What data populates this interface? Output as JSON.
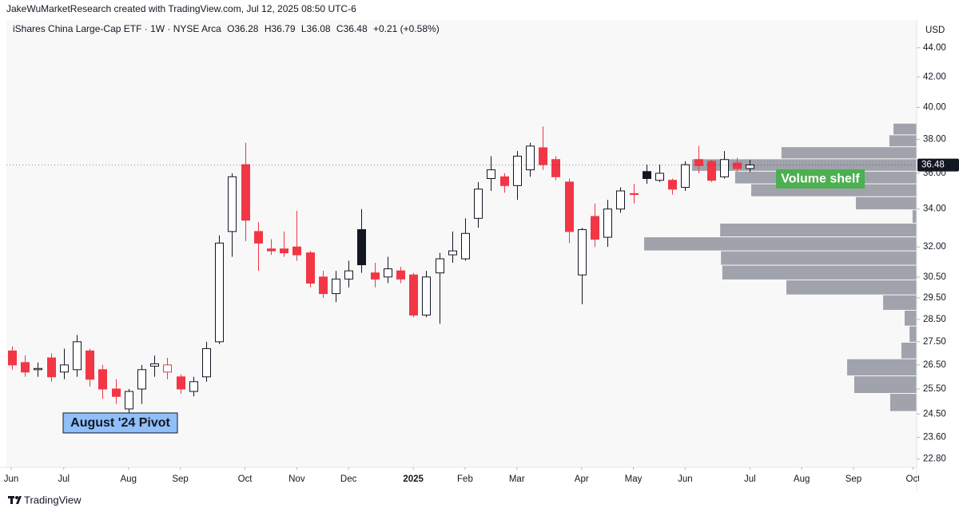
{
  "attribution": "JakeWuMarketResearch created with TradingView.com, Jul 12, 2025 08:50 UTC-6",
  "footer": "TradingView",
  "chart_data": {
    "type": "candlestick",
    "title": "iShares China Large-Cap ETF · 1W · NYSE Arca",
    "legend_values": [
      "O36.28",
      "H36.79",
      "L36.08",
      "C36.48",
      "+0.21 (+0.58%)"
    ],
    "currency": "USD",
    "log_scale": true,
    "up_color": "#131722",
    "down_color": "#f23645",
    "profile_color": "#a0a3ab",
    "candles": [
      [
        27.1,
        27.3,
        26.3,
        26.5
      ],
      [
        26.6,
        26.9,
        26.0,
        26.2
      ],
      [
        26.3,
        26.6,
        26.0,
        26.35
      ],
      [
        26.8,
        27.0,
        25.8,
        26.0
      ],
      [
        26.2,
        27.2,
        25.9,
        26.5
      ],
      [
        26.3,
        27.8,
        26.0,
        27.5
      ],
      [
        27.1,
        27.2,
        25.6,
        25.9
      ],
      [
        26.3,
        26.5,
        25.1,
        25.5
      ],
      [
        25.5,
        25.9,
        24.9,
        25.2
      ],
      [
        24.7,
        25.5,
        24.5,
        25.4
      ],
      [
        25.5,
        26.5,
        24.9,
        26.3
      ],
      [
        26.45,
        26.9,
        26.0,
        26.55
      ],
      [
        26.2,
        26.8,
        25.9,
        26.5
      ],
      [
        26.0,
        26.1,
        25.3,
        25.5
      ],
      [
        25.4,
        26.0,
        25.2,
        25.8
      ],
      [
        26.0,
        27.5,
        25.8,
        27.2
      ],
      [
        27.5,
        32.6,
        27.4,
        32.2
      ],
      [
        32.8,
        36.0,
        31.5,
        35.8
      ],
      [
        36.5,
        37.8,
        32.3,
        33.4
      ],
      [
        32.8,
        33.3,
        30.8,
        32.2
      ],
      [
        31.9,
        32.4,
        31.6,
        31.8
      ],
      [
        31.9,
        32.8,
        31.5,
        31.7
      ],
      [
        32.0,
        33.9,
        31.3,
        31.6
      ],
      [
        31.7,
        31.8,
        30.0,
        30.2
      ],
      [
        30.5,
        30.8,
        29.5,
        29.7
      ],
      [
        29.7,
        30.8,
        29.3,
        30.4
      ],
      [
        30.4,
        31.3,
        30.0,
        30.8
      ],
      [
        32.9,
        34.0,
        30.7,
        31.1
      ],
      [
        30.7,
        31.2,
        30.0,
        30.4
      ],
      [
        30.5,
        31.5,
        30.2,
        30.9
      ],
      [
        30.8,
        31.0,
        30.2,
        30.4
      ],
      [
        30.6,
        30.7,
        28.6,
        28.7
      ],
      [
        28.7,
        30.8,
        28.6,
        30.5
      ],
      [
        30.7,
        31.7,
        28.3,
        31.4
      ],
      [
        31.6,
        32.8,
        31.2,
        31.8
      ],
      [
        31.4,
        33.5,
        31.3,
        32.7
      ],
      [
        33.5,
        35.5,
        33.0,
        35.1
      ],
      [
        35.7,
        37.0,
        35.0,
        36.2
      ],
      [
        35.8,
        36.0,
        34.9,
        35.3
      ],
      [
        35.3,
        37.3,
        34.5,
        37.0
      ],
      [
        36.2,
        37.8,
        35.8,
        37.6
      ],
      [
        37.5,
        38.8,
        36.2,
        36.5
      ],
      [
        36.8,
        37.0,
        35.6,
        35.8
      ],
      [
        35.5,
        35.7,
        32.2,
        32.8
      ],
      [
        30.6,
        33.0,
        29.2,
        32.9
      ],
      [
        33.6,
        34.3,
        32.0,
        32.4
      ],
      [
        32.5,
        34.5,
        32.0,
        34.0
      ],
      [
        34.0,
        35.2,
        33.8,
        35.0
      ],
      [
        34.85,
        35.4,
        34.3,
        34.8
      ],
      [
        36.1,
        36.5,
        35.4,
        35.7
      ],
      [
        35.6,
        36.5,
        35.5,
        36.0
      ],
      [
        35.6,
        35.7,
        34.8,
        35.1
      ],
      [
        35.2,
        36.7,
        35.0,
        36.5
      ],
      [
        36.8,
        37.6,
        36.0,
        36.45
      ],
      [
        36.7,
        36.8,
        35.5,
        35.6
      ],
      [
        35.8,
        37.3,
        35.7,
        36.8
      ],
      [
        36.6,
        36.9,
        36.1,
        36.27
      ],
      [
        36.28,
        36.79,
        36.08,
        36.48
      ]
    ],
    "profile_bins": [
      24.6,
      25.32,
      26.04,
      26.76,
      27.48,
      28.2,
      28.92,
      29.64,
      30.36,
      31.08,
      31.8,
      32.52,
      33.24,
      33.96,
      34.68,
      35.4,
      36.12,
      36.84,
      37.56,
      38.28,
      39.0
    ],
    "profile_volumes": [
      9.7,
      22.9,
      25.5,
      5.6,
      2.6,
      4.4,
      12.3,
      47.8,
      71.3,
      71.8,
      100,
      72.1,
      1.5,
      22.3,
      60.7,
      66.6,
      82.4,
      49.6,
      10,
      8.5
    ],
    "ylim": [
      22.5,
      46
    ],
    "yticks": [
      {
        "value": 44,
        "label": "44.00"
      },
      {
        "value": 42,
        "label": "42.00"
      },
      {
        "value": 40,
        "label": "40.00"
      },
      {
        "value": 38,
        "label": "38.00"
      },
      {
        "value": 36,
        "label": "36.00"
      },
      {
        "value": 34,
        "label": "34.00"
      },
      {
        "value": 32,
        "label": "32.00"
      },
      {
        "value": 30.5,
        "label": "30.50"
      },
      {
        "value": 29.5,
        "label": "29.50"
      },
      {
        "value": 28.5,
        "label": "28.50"
      },
      {
        "value": 27.5,
        "label": "27.50"
      },
      {
        "value": 26.5,
        "label": "26.50"
      },
      {
        "value": 25.5,
        "label": "25.50"
      },
      {
        "value": 24.5,
        "label": "24.50"
      },
      {
        "value": 23.6,
        "label": "23.60"
      },
      {
        "value": 22.8,
        "label": "22.80"
      }
    ],
    "xlim": [
      -0.43,
      69.88
    ],
    "xticks": [
      {
        "value": -0.06,
        "label": "Jun"
      },
      {
        "value": 4,
        "label": "Jul"
      },
      {
        "value": 9,
        "label": "Aug"
      },
      {
        "value": 13,
        "label": "Sep"
      },
      {
        "value": 18,
        "label": "Oct"
      },
      {
        "value": 22,
        "label": "Nov"
      },
      {
        "value": 26,
        "label": "Dec"
      },
      {
        "value": 31,
        "label": "2025"
      },
      {
        "value": 35,
        "label": "Feb"
      },
      {
        "value": 39,
        "label": "Mar"
      },
      {
        "value": 44,
        "label": "Apr"
      },
      {
        "value": 48,
        "label": "May"
      },
      {
        "value": 52,
        "label": "Jun"
      },
      {
        "value": 57,
        "label": "Jul"
      },
      {
        "value": 61,
        "label": "Aug"
      },
      {
        "value": 65,
        "label": "Sep"
      },
      {
        "value": 69.6,
        "label": "Oct"
      }
    ],
    "annotations": [
      "Volume shelf",
      "August '24 Pivot"
    ]
  }
}
